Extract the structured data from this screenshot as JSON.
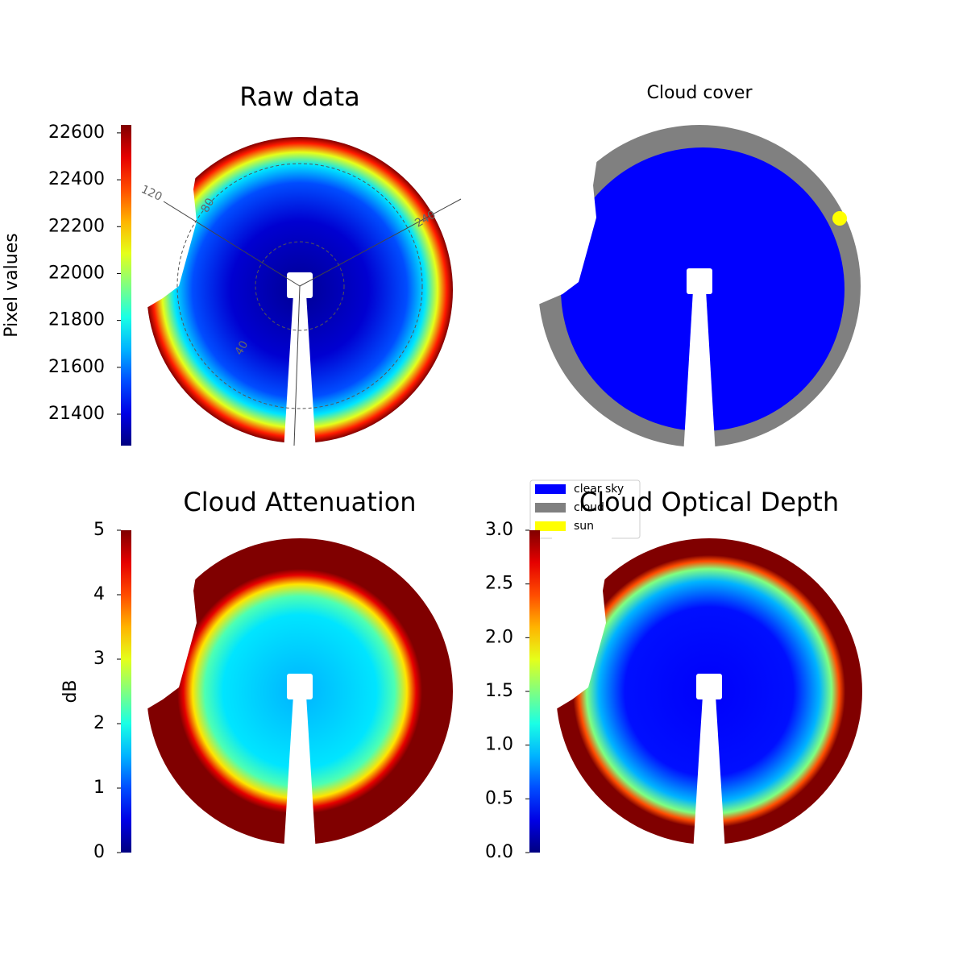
{
  "chart_data": [
    {
      "type": "image",
      "title": "Raw data",
      "colorbar": {
        "label": "Pixel values",
        "lim": [
          21266,
          22634
        ],
        "ticks": [
          21400,
          21600,
          21800,
          22000,
          22200,
          22400,
          22600
        ]
      },
      "polar_labels": [
        "120",
        "80",
        "240",
        "40"
      ]
    },
    {
      "type": "image",
      "title": "Cloud cover",
      "legend": [
        {
          "name": "clear sky",
          "color": "#0000ff"
        },
        {
          "name": "cloud",
          "color": "#808080"
        },
        {
          "name": "sun",
          "color": "#ffff00"
        }
      ]
    },
    {
      "type": "image",
      "title": "Cloud Attenuation",
      "colorbar": {
        "label": "dB",
        "lim": [
          0,
          5
        ],
        "ticks": [
          0,
          1,
          2,
          3,
          4,
          5
        ]
      }
    },
    {
      "type": "image",
      "title": "Cloud Optical Depth",
      "colorbar": {
        "lim": [
          0,
          3
        ],
        "ticks": [
          {
            "value": 0,
            "label": "0.0"
          },
          0.5,
          {
            "value": 1,
            "label": "1.0"
          },
          1.5,
          {
            "value": 2,
            "label": "2.0"
          },
          2.5,
          {
            "value": 3,
            "label": "3.0"
          }
        ]
      }
    }
  ]
}
